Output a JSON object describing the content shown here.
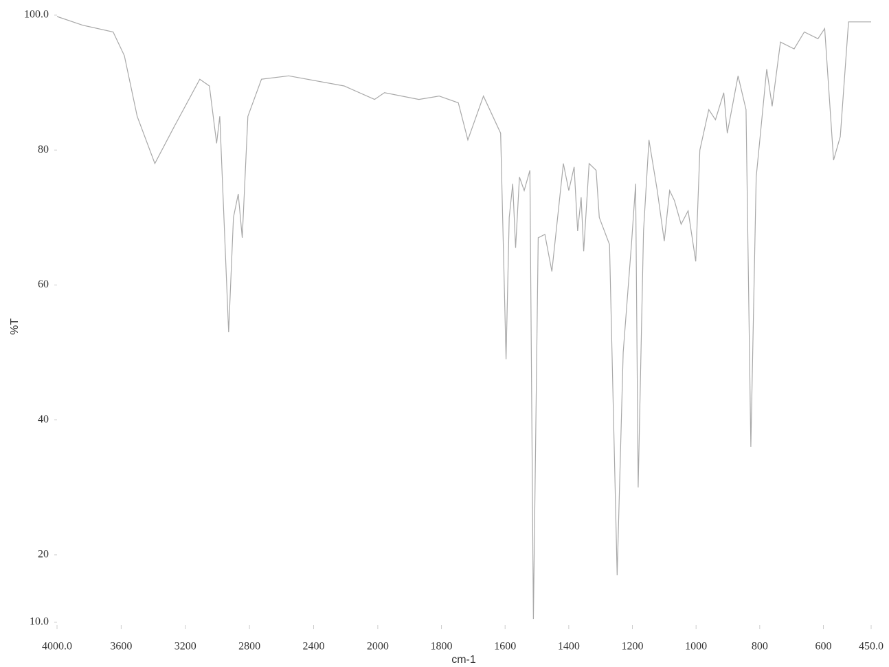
{
  "chart_data": {
    "type": "line",
    "x_label": "cm-1",
    "y_label": "%T",
    "x": [
      4000,
      3840,
      3650,
      3580,
      3500,
      3390,
      3280,
      3110,
      3050,
      3005,
      2985,
      2930,
      2900,
      2870,
      2845,
      2810,
      2725,
      2555,
      2210,
      2020,
      1979,
      1871,
      1807,
      1747,
      1717,
      1668,
      1614,
      1597,
      1587,
      1576,
      1567,
      1555,
      1540,
      1522,
      1511,
      1496,
      1475,
      1453,
      1417,
      1400,
      1383,
      1372,
      1361,
      1353,
      1336,
      1314,
      1304,
      1272,
      1248,
      1229,
      1203,
      1190,
      1182,
      1165,
      1148,
      1122,
      1100,
      1083,
      1068,
      1047,
      1025,
      1001,
      988,
      960,
      939,
      913,
      902,
      868,
      843,
      828,
      811,
      778,
      761,
      735,
      692,
      660,
      617,
      596,
      568,
      547,
      521,
      450
    ],
    "values": [
      99.8,
      98.5,
      97.5,
      94,
      85,
      78,
      83,
      90.5,
      89.5,
      81,
      85,
      53,
      70,
      73.5,
      67,
      85,
      90.5,
      91,
      89.5,
      87.5,
      88.5,
      87.5,
      88,
      87,
      81.5,
      88,
      82.5,
      49,
      70,
      75,
      65.5,
      76,
      74,
      77,
      10.5,
      67,
      67.5,
      62,
      78,
      74,
      77.5,
      68,
      73,
      65,
      78,
      77,
      70,
      66,
      17,
      50,
      66,
      75,
      30,
      68,
      81.5,
      74,
      66.5,
      74,
      72.5,
      69,
      71,
      63.5,
      80,
      86,
      84.5,
      88.5,
      82.5,
      91,
      86,
      36,
      76,
      92,
      86.5,
      96,
      95,
      97.5,
      96.5,
      98,
      78.5,
      82,
      99,
      99
    ],
    "color": "#a8a8a8",
    "xlim": [
      4000,
      450
    ],
    "x_scale_change": 2000,
    "xticks": [
      {
        "value": 4000,
        "label": "4000.0"
      },
      3600,
      3200,
      2800,
      2400,
      2000,
      1800,
      1600,
      1400,
      1200,
      1000,
      800,
      600,
      {
        "value": 450,
        "label": "450.0"
      }
    ],
    "ylim": [
      10,
      100
    ],
    "yticks": [
      {
        "value": 10,
        "label": "10.0"
      },
      20,
      40,
      60,
      80,
      {
        "value": 100,
        "label": "100.0"
      }
    ]
  }
}
